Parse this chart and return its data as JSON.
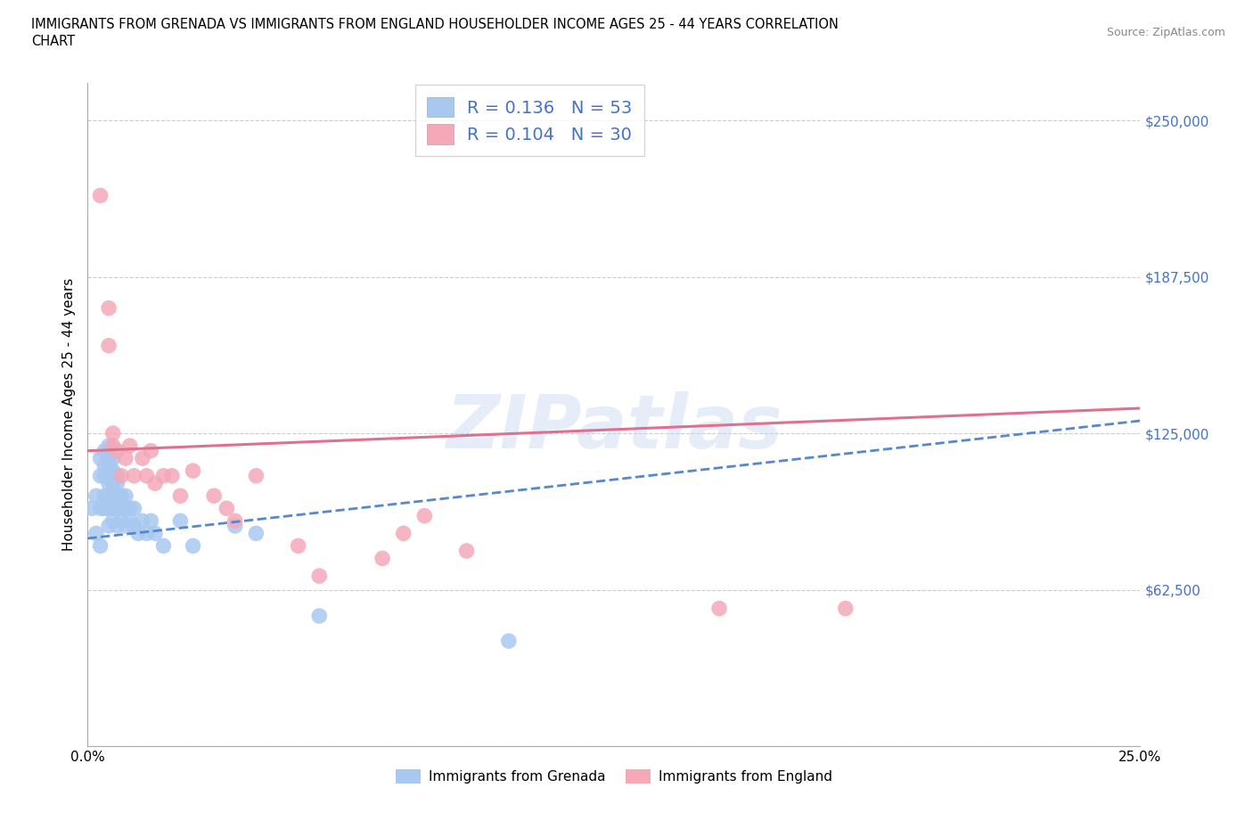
{
  "title_line1": "IMMIGRANTS FROM GRENADA VS IMMIGRANTS FROM ENGLAND HOUSEHOLDER INCOME AGES 25 - 44 YEARS CORRELATION",
  "title_line2": "CHART",
  "source_text": "Source: ZipAtlas.com",
  "watermark": "ZIPatlas",
  "ylabel": "Householder Income Ages 25 - 44 years",
  "xlim": [
    0.0,
    0.25
  ],
  "ylim": [
    0,
    265000
  ],
  "yticks": [
    0,
    62500,
    125000,
    187500,
    250000
  ],
  "ytick_labels": [
    "",
    "$62,500",
    "$125,000",
    "$187,500",
    "$250,000"
  ],
  "xticks": [
    0.0,
    0.05,
    0.1,
    0.15,
    0.2,
    0.25
  ],
  "xtick_labels": [
    "0.0%",
    "",
    "",
    "",
    "",
    "25.0%"
  ],
  "series1_label": "Immigrants from Grenada",
  "series1_color": "#a8c8f0",
  "series1_R": "0.136",
  "series1_N": "53",
  "series2_label": "Immigrants from England",
  "series2_color": "#f4a8b8",
  "series2_R": "0.104",
  "series2_N": "30",
  "trend1_color": "#5588cc",
  "trend2_color": "#e07090",
  "legend_text_color": "#4472c4",
  "scatter1_x": [
    0.001,
    0.002,
    0.002,
    0.003,
    0.003,
    0.003,
    0.003,
    0.004,
    0.004,
    0.004,
    0.004,
    0.004,
    0.005,
    0.005,
    0.005,
    0.005,
    0.005,
    0.005,
    0.005,
    0.005,
    0.006,
    0.006,
    0.006,
    0.006,
    0.006,
    0.006,
    0.007,
    0.007,
    0.007,
    0.007,
    0.007,
    0.008,
    0.008,
    0.008,
    0.009,
    0.009,
    0.009,
    0.01,
    0.01,
    0.011,
    0.011,
    0.012,
    0.013,
    0.014,
    0.015,
    0.016,
    0.018,
    0.022,
    0.025,
    0.035,
    0.04,
    0.055,
    0.1
  ],
  "scatter1_y": [
    95000,
    85000,
    100000,
    80000,
    95000,
    108000,
    115000,
    95000,
    100000,
    108000,
    112000,
    118000,
    88000,
    95000,
    100000,
    105000,
    108000,
    112000,
    115000,
    120000,
    90000,
    95000,
    100000,
    105000,
    110000,
    115000,
    88000,
    95000,
    100000,
    105000,
    108000,
    90000,
    95000,
    100000,
    88000,
    95000,
    100000,
    90000,
    95000,
    88000,
    95000,
    85000,
    90000,
    85000,
    90000,
    85000,
    80000,
    90000,
    80000,
    88000,
    85000,
    52000,
    42000
  ],
  "scatter2_x": [
    0.003,
    0.005,
    0.005,
    0.006,
    0.006,
    0.007,
    0.008,
    0.009,
    0.01,
    0.011,
    0.013,
    0.014,
    0.015,
    0.016,
    0.018,
    0.02,
    0.022,
    0.025,
    0.03,
    0.033,
    0.035,
    0.04,
    0.05,
    0.055,
    0.07,
    0.075,
    0.08,
    0.09,
    0.15,
    0.18
  ],
  "scatter2_y": [
    220000,
    160000,
    175000,
    120000,
    125000,
    118000,
    108000,
    115000,
    120000,
    108000,
    115000,
    108000,
    118000,
    105000,
    108000,
    108000,
    100000,
    110000,
    100000,
    95000,
    90000,
    108000,
    80000,
    68000,
    75000,
    85000,
    92000,
    78000,
    55000,
    55000
  ],
  "trend1_x": [
    0.0,
    0.25
  ],
  "trend1_y": [
    83000,
    130000
  ],
  "trend2_x": [
    0.0,
    0.25
  ],
  "trend2_y": [
    118000,
    135000
  ],
  "grid_color": "#cccccc",
  "background_color": "#ffffff"
}
